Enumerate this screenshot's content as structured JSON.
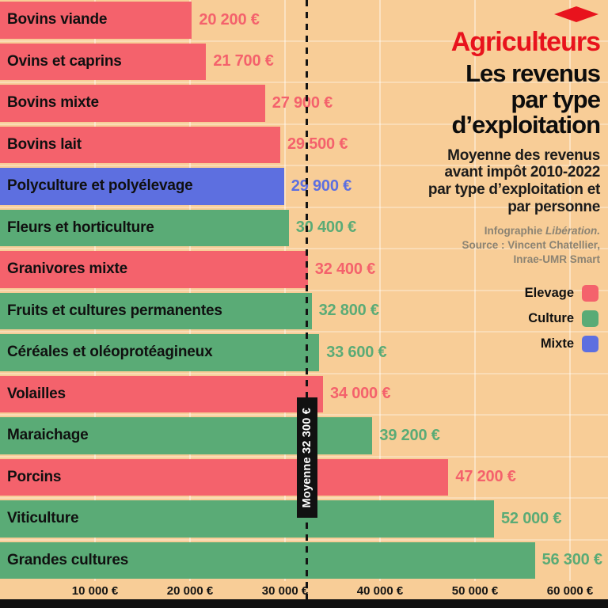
{
  "header": {
    "kicker": "Agriculteurs",
    "title_lines": [
      "Les revenus",
      "par type",
      "d’exploitation"
    ],
    "subtitle_lines": [
      "Moyenne des revenus",
      "avant impôt 2010-2022",
      "par type d’exploitation et",
      "par personne"
    ],
    "credit_infographie_prefix": "Infographie ",
    "credit_infographie_name": "Libération.",
    "credit_source_lines": [
      "Source : Vincent Chatellier,",
      "Inrae-UMR Smart"
    ],
    "logo_icon": "red-diamond"
  },
  "legend": {
    "position": "right",
    "items": [
      {
        "label": "Elevage",
        "key": "elevage",
        "color": "#f4626c"
      },
      {
        "label": "Culture",
        "key": "culture",
        "color": "#5aab76"
      },
      {
        "label": "Mixte",
        "key": "mixte",
        "color": "#5d6fe0"
      }
    ]
  },
  "chart_data": {
    "type": "bar",
    "orientation": "horizontal",
    "title": "Les revenus par type d’exploitation",
    "subtitle": "Moyenne des revenus avant impôt 2010-2022 par type d’exploitation et par personne",
    "xlabel": "",
    "ylabel": "",
    "xlim": [
      0,
      64000
    ],
    "grid": true,
    "categories": [
      "Bovins viande",
      "Ovins et caprins",
      "Bovins mixte",
      "Bovins lait",
      "Polyculture et polyélevage",
      "Fleurs et horticulture",
      "Granivores mixte",
      "Fruits et cultures permanentes",
      "Céréales et oléoprotéagineux",
      "Volailles",
      "Maraichage",
      "Porcins",
      "Viticulture",
      "Grandes cultures"
    ],
    "values": [
      20200,
      21700,
      27900,
      29500,
      29900,
      30400,
      32400,
      32800,
      33600,
      34000,
      39200,
      47200,
      52000,
      56300
    ],
    "value_labels": [
      "20 200 €",
      "21 700 €",
      "27 900 €",
      "29 500 €",
      "29 900 €",
      "30 400 €",
      "32 400 €",
      "32 800 €",
      "33 600 €",
      "34 000 €",
      "39 200 €",
      "47 200 €",
      "52 000 €",
      "56 300 €"
    ],
    "series_by_bar": [
      "elevage",
      "elevage",
      "elevage",
      "elevage",
      "mixte",
      "culture",
      "elevage",
      "culture",
      "culture",
      "elevage",
      "culture",
      "elevage",
      "culture",
      "culture"
    ],
    "x_ticks": [
      {
        "value": 10000,
        "label": "10 000 €"
      },
      {
        "value": 20000,
        "label": "20 000 €"
      },
      {
        "value": 30000,
        "label": "30 000 €"
      },
      {
        "value": 40000,
        "label": "40 000 €"
      },
      {
        "value": 50000,
        "label": "50 000 €"
      },
      {
        "value": 60000,
        "label": "60 000 €"
      }
    ],
    "average": {
      "value": 32300,
      "label_text": "Moyenne 32 300 €"
    }
  },
  "colors": {
    "background": "#f8cd97",
    "elevage": "#f4626c",
    "culture": "#5aab76",
    "mixte": "#5d6fe0",
    "accent_red": "#e8131d",
    "axis_bar": "#101010",
    "credit_gray": "#8b8373"
  }
}
